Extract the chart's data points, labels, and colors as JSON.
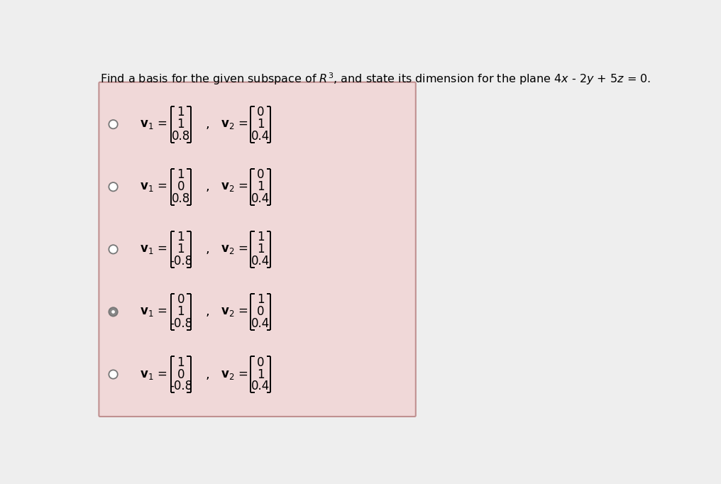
{
  "background_color": "#f0d8d8",
  "outer_bg": "#eeeeee",
  "title_text": "Find a basis for the given subspace of $R^3$, and state its dimension for the plane 4 x - 2 y + 5 z = 0.",
  "options": [
    {
      "radio_filled": false,
      "v1": [
        "1",
        "1",
        "0.8"
      ],
      "v2": [
        "0",
        "1",
        "0.4"
      ]
    },
    {
      "radio_filled": false,
      "v1": [
        "1",
        "0",
        "0.8"
      ],
      "v2": [
        "0",
        "1",
        "0.4"
      ]
    },
    {
      "radio_filled": false,
      "v1": [
        "1",
        "1",
        "-0.8"
      ],
      "v2": [
        "1",
        "1",
        "0.4"
      ]
    },
    {
      "radio_filled": true,
      "v1": [
        "0",
        "1",
        "-0.8"
      ],
      "v2": [
        "1",
        "0",
        "0.4"
      ]
    },
    {
      "radio_filled": false,
      "v1": [
        "1",
        "0",
        "-0.8"
      ],
      "v2": [
        "0",
        "1",
        "0.4"
      ]
    }
  ]
}
